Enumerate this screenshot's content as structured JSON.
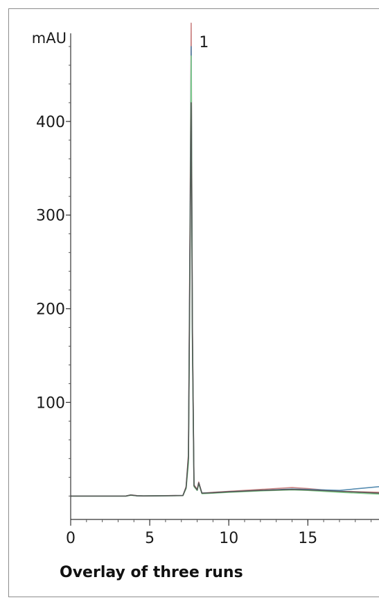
{
  "caption": "Overlay of three runs",
  "chart_data": {
    "type": "line",
    "title": "",
    "xlabel": "",
    "ylabel": "mAU",
    "xlim": [
      0,
      19.5
    ],
    "ylim": [
      -25,
      500
    ],
    "x_ticks": [
      0,
      5,
      10,
      15
    ],
    "y_ticks": [
      100,
      200,
      300,
      400
    ],
    "grid": false,
    "annotations": [
      {
        "text": "1",
        "x": 7.6,
        "y": 485
      }
    ],
    "series": [
      {
        "color": "#c77a7a",
        "x": [
          0,
          3.5,
          3.8,
          4.2,
          4.6,
          7.1,
          7.3,
          7.45,
          7.55,
          7.62,
          7.7,
          7.8,
          8.0,
          8.1,
          8.3,
          9.0,
          10,
          12,
          14,
          15,
          17,
          19.5
        ],
        "y": [
          0,
          0,
          1.2,
          0.4,
          0.1,
          0.6,
          10,
          45,
          300,
          505,
          180,
          12,
          7,
          15,
          3,
          4,
          5,
          7,
          9,
          8,
          5,
          4
        ]
      },
      {
        "color": "#4d86ad",
        "x": [
          0,
          3.5,
          3.8,
          4.2,
          4.6,
          7.1,
          7.3,
          7.45,
          7.55,
          7.62,
          7.7,
          7.8,
          8.0,
          8.1,
          8.3,
          9.0,
          10,
          12,
          14,
          15,
          17,
          19.5
        ],
        "y": [
          0,
          0,
          1.0,
          0.3,
          0.1,
          0.5,
          9,
          40,
          280,
          480,
          170,
          11,
          6,
          14,
          3,
          3.5,
          4.5,
          6,
          7.5,
          7,
          6,
          10
        ]
      },
      {
        "color": "#7fcf8a",
        "x": [
          0,
          3.5,
          3.8,
          4.2,
          4.6,
          7.1,
          7.3,
          7.45,
          7.55,
          7.62,
          7.7,
          7.8,
          8.0,
          8.1,
          8.3,
          9.0,
          10,
          12,
          14,
          15,
          17,
          19.5
        ],
        "y": [
          0,
          0,
          0.8,
          0.2,
          0.1,
          0.4,
          8,
          35,
          260,
          470,
          160,
          10,
          6,
          13,
          2.5,
          3,
          4,
          5.5,
          6.5,
          6,
          4,
          2
        ]
      },
      {
        "color": "#505050",
        "x": [
          0,
          3.5,
          3.8,
          4.2,
          4.6,
          7.1,
          7.3,
          7.45,
          7.55,
          7.62,
          7.7,
          7.8,
          8.0,
          8.1,
          8.3,
          9.0,
          10,
          12,
          14,
          15,
          17,
          19.5
        ],
        "y": [
          0,
          0,
          1.1,
          0.3,
          0.1,
          0.5,
          9,
          42,
          270,
          420,
          175,
          11,
          6.5,
          14,
          3,
          3.5,
          4.5,
          6,
          7,
          6.5,
          5,
          3
        ]
      }
    ]
  }
}
